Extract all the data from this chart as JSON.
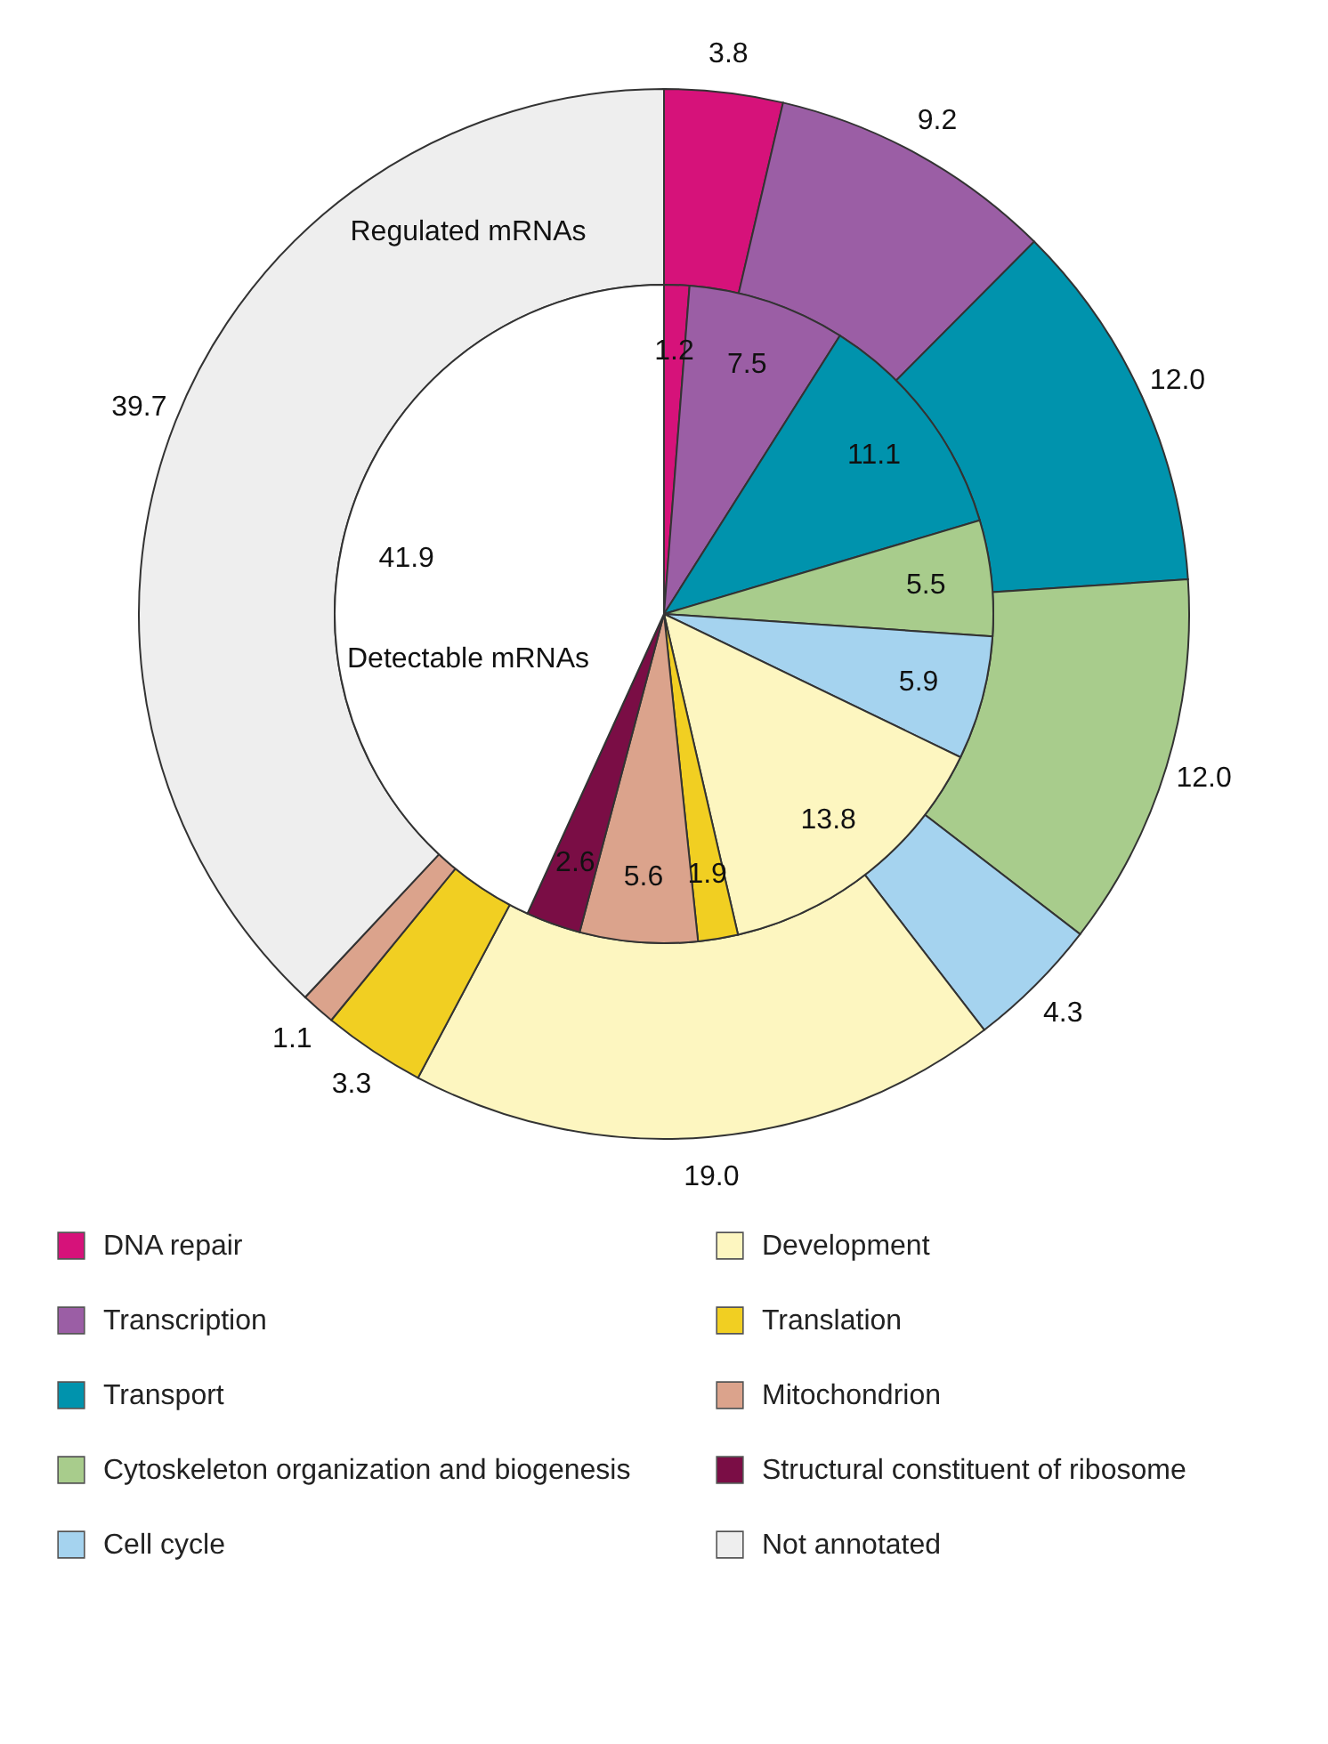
{
  "chart_data": {
    "type": "donut",
    "legend": "bottom",
    "annotations": [
      "Regulated mRNAs",
      "Detectable mRNAs"
    ],
    "categories": [
      "DNA repair",
      "Transcription",
      "Transport",
      "Cytoskeleton organization and biogenesis",
      "Cell cycle",
      "Development",
      "Translation",
      "Mitochondrion",
      "Structural constituent of ribosome",
      "Not annotated"
    ],
    "series": [
      {
        "type": "donut",
        "values": [
          3.8,
          9.2,
          12.0,
          12.0,
          4.3,
          19.0,
          3.3,
          1.1,
          null,
          39.7
        ],
        "value_labels": [
          "3.8",
          "9.2",
          "12.0",
          "12.0",
          "4.3",
          "19.0",
          "3.3",
          "1.1",
          null,
          "39.7"
        ],
        "colors": [
          "#d6127a",
          "#9b5ea5",
          "#0093ad",
          "#a8cc8c",
          "#a5d3ef",
          "#fdf6c0",
          "#f1cf22",
          "#dba38c",
          "#7a0d45",
          "#eeeeee"
        ]
      },
      {
        "type": "pie",
        "values": [
          1.2,
          7.5,
          11.1,
          5.5,
          5.9,
          13.8,
          1.9,
          5.6,
          2.6,
          41.9
        ],
        "value_labels": [
          "1.2",
          "7.5",
          "11.1",
          "5.5",
          "5.9",
          "13.8",
          "1.9",
          "5.6",
          "2.6",
          "41.9"
        ],
        "colors": [
          "#d6127a",
          "#9b5ea5",
          "#0093ad",
          "#a8cc8c",
          "#a5d3ef",
          "#fdf6c0",
          "#f1cf22",
          "#dba38c",
          "#7a0d45",
          "#ffffff"
        ]
      }
    ]
  }
}
